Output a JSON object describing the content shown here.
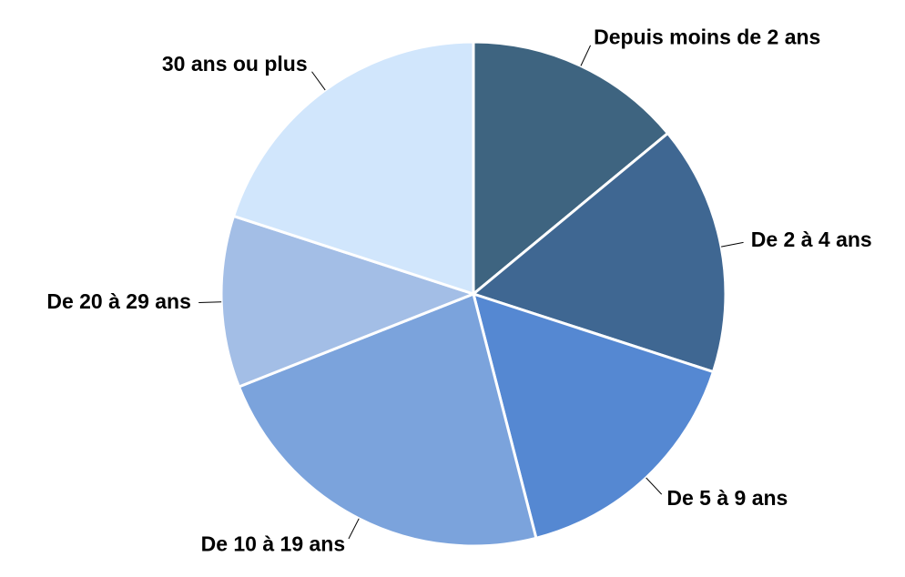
{
  "chart_data": {
    "type": "pie",
    "categories": [
      "Depuis moins de 2 ans",
      "De 2 à 4 ans",
      "De 5 à 9 ans",
      "De 10 à 19 ans",
      "De 20 à 29 ans",
      "30 ans ou plus"
    ],
    "values": [
      14,
      16,
      16,
      23,
      11,
      20
    ],
    "colors": [
      "#3e6480",
      "#3f6792",
      "#5588d2",
      "#7ba3dc",
      "#a3bee6",
      "#d1e6fc"
    ]
  }
}
